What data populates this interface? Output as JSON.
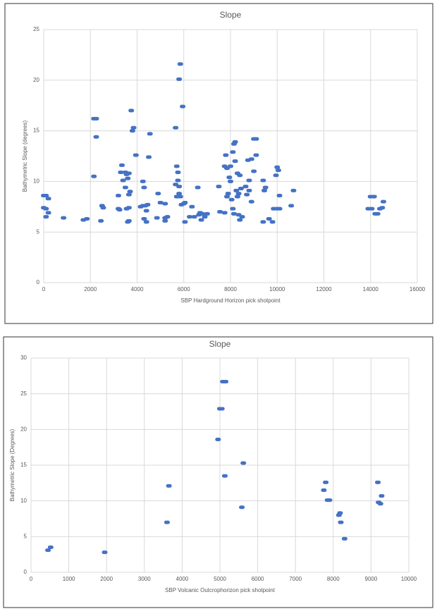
{
  "chart_data": [
    {
      "type": "scatter",
      "title": "Slope",
      "x_label": "SBP Hardground Horizon pick shotpoint",
      "y_label": "Bathymetric Slope (degrees)",
      "color": "#4472c4",
      "grid": true,
      "xlim": [
        0,
        16000
      ],
      "xticks": [
        0,
        2000,
        4000,
        6000,
        8000,
        10000,
        12000,
        14000,
        16000
      ],
      "ylim": [
        0,
        25
      ],
      "yticks": [
        0,
        5,
        10,
        15,
        20,
        25
      ],
      "x": [
        0,
        100,
        200,
        0,
        100,
        200,
        100,
        850,
        1700,
        1850,
        2150,
        2250,
        2250,
        2150,
        2500,
        2550,
        2450,
        3200,
        3200,
        3250,
        3350,
        3300,
        3400,
        3550,
        3600,
        3500,
        3650,
        3700,
        3550,
        3650,
        3650,
        3600,
        3750,
        3800,
        3850,
        3950,
        3500,
        3650,
        4150,
        4250,
        4300,
        4250,
        4350,
        4450,
        4500,
        4550,
        4400,
        4300,
        4400,
        4900,
        5000,
        5200,
        4850,
        5200,
        5300,
        5200,
        5650,
        5800,
        5850,
        5950,
        5700,
        5750,
        5750,
        5650,
        5800,
        5800,
        5700,
        5850,
        5900,
        6000,
        6050,
        6050,
        6250,
        6350,
        6450,
        6600,
        6650,
        6700,
        6800,
        6750,
        6900,
        7000,
        7500,
        7550,
        7750,
        7850,
        7800,
        7950,
        8000,
        8100,
        8150,
        8200,
        7900,
        7850,
        8050,
        8100,
        7750,
        8000,
        8200,
        8300,
        8400,
        8250,
        8350,
        8450,
        8300,
        8150,
        8350,
        8400,
        8500,
        8650,
        8700,
        8800,
        8800,
        8750,
        8900,
        9000,
        9100,
        9000,
        9100,
        8900,
        9400,
        9450,
        9500,
        9400,
        9650,
        9800,
        9850,
        10000,
        10050,
        9950,
        10100,
        10000,
        10100,
        10600,
        10700,
        14000,
        14150,
        13900,
        14050,
        14200,
        14300,
        14400,
        14500,
        14550
      ],
      "values": [
        8.6,
        8.6,
        8.3,
        7.4,
        7.3,
        6.9,
        6.5,
        6.4,
        6.2,
        6.3,
        16.2,
        16.2,
        14.4,
        10.5,
        7.6,
        7.4,
        6.1,
        8.6,
        7.3,
        7.2,
        11.6,
        10.9,
        10.1,
        10.7,
        10.3,
        9.4,
        8.7,
        9.0,
        7.3,
        7.4,
        6.1,
        6.0,
        17.0,
        15.0,
        15.3,
        12.6,
        10.9,
        10.8,
        7.5,
        10.0,
        9.4,
        7.6,
        7.6,
        7.7,
        12.4,
        14.7,
        7.1,
        6.3,
        6.0,
        8.8,
        7.9,
        7.8,
        6.4,
        6.4,
        6.5,
        6.1,
        15.3,
        20.1,
        21.6,
        17.4,
        11.5,
        10.9,
        10.1,
        9.7,
        9.5,
        8.8,
        8.5,
        8.5,
        7.7,
        7.8,
        7.9,
        6.0,
        6.5,
        7.5,
        6.5,
        9.4,
        6.7,
        6.9,
        6.8,
        6.2,
        6.5,
        6.8,
        9.5,
        7.0,
        11.5,
        11.3,
        12.6,
        10.4,
        11.5,
        12.9,
        13.7,
        13.9,
        8.8,
        8.5,
        8.2,
        7.3,
        6.9,
        10.0,
        12.0,
        10.8,
        10.6,
        9.1,
        8.8,
        9.3,
        8.5,
        6.8,
        6.7,
        6.2,
        6.5,
        9.5,
        8.7,
        9.1,
        10.1,
        12.1,
        12.2,
        11.0,
        12.6,
        14.2,
        14.2,
        8.0,
        10.1,
        9.1,
        9.4,
        6.0,
        6.3,
        6.0,
        7.3,
        11.4,
        11.1,
        10.6,
        8.6,
        7.3,
        7.3,
        7.6,
        9.1,
        8.5,
        8.5,
        7.3,
        7.3,
        6.8,
        6.8,
        7.3,
        7.4,
        8.0
      ]
    },
    {
      "type": "scatter",
      "title": "Slope",
      "x_label": "SBP Volcanic Outcrophorizon pick shotpoint",
      "y_label": "Bathymetric Slope (Degrees)",
      "color": "#4472c4",
      "grid": true,
      "xlim": [
        0,
        10000
      ],
      "xticks": [
        0,
        1000,
        2000,
        3000,
        4000,
        5000,
        6000,
        7000,
        8000,
        9000,
        10000
      ],
      "ylim": [
        0,
        30
      ],
      "yticks": [
        0,
        5,
        10,
        15,
        20,
        25,
        30
      ],
      "x": [
        450,
        520,
        1950,
        3600,
        3650,
        4950,
        5000,
        5050,
        5080,
        5150,
        5130,
        5580,
        5620,
        7750,
        7800,
        7850,
        7900,
        8150,
        8180,
        8200,
        8300,
        9180,
        9200,
        9250,
        9280
      ],
      "values": [
        3.1,
        3.5,
        2.8,
        7.0,
        12.1,
        18.6,
        22.9,
        22.9,
        26.7,
        26.7,
        13.5,
        9.1,
        15.3,
        11.5,
        12.6,
        10.1,
        10.1,
        8.0,
        8.3,
        7.0,
        4.7,
        12.6,
        9.8,
        9.6,
        10.7
      ]
    }
  ]
}
